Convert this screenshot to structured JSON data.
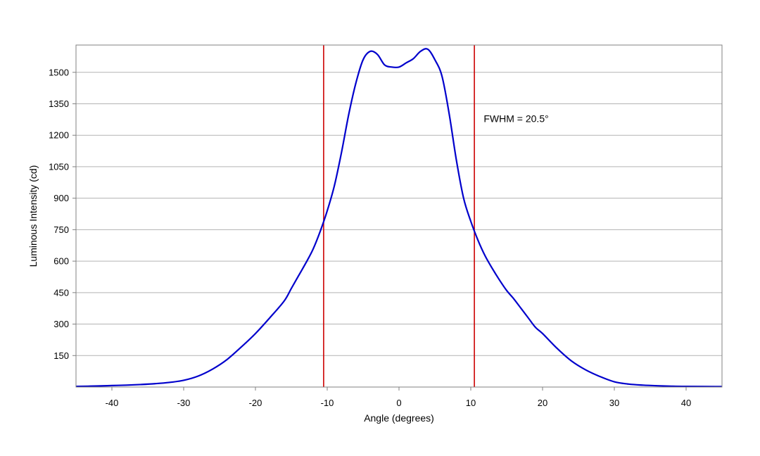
{
  "chart_data": {
    "type": "line",
    "title": "",
    "xlabel": "Angle (degrees)",
    "ylabel": "Luminous Intensity (cd)",
    "xlim": [
      -45,
      45
    ],
    "ylim": [
      0,
      1630
    ],
    "x_ticks": [
      -40,
      -30,
      -20,
      -10,
      0,
      10,
      20,
      30,
      40
    ],
    "y_ticks": [
      150,
      300,
      450,
      600,
      750,
      900,
      1050,
      1200,
      1350,
      1500
    ],
    "grid": "horizontal",
    "legend": "none",
    "series": [
      {
        "color": "#0000cc",
        "points": [
          [
            -45,
            3
          ],
          [
            -42,
            5
          ],
          [
            -40,
            7
          ],
          [
            -38,
            9
          ],
          [
            -36,
            12
          ],
          [
            -34,
            16
          ],
          [
            -32,
            22
          ],
          [
            -30,
            32
          ],
          [
            -28,
            52
          ],
          [
            -26,
            85
          ],
          [
            -24,
            130
          ],
          [
            -22,
            190
          ],
          [
            -20,
            255
          ],
          [
            -18,
            330
          ],
          [
            -16,
            410
          ],
          [
            -15,
            470
          ],
          [
            -14,
            530
          ],
          [
            -13,
            590
          ],
          [
            -12,
            655
          ],
          [
            -11,
            740
          ],
          [
            -10,
            840
          ],
          [
            -9,
            960
          ],
          [
            -8,
            1120
          ],
          [
            -7,
            1300
          ],
          [
            -6,
            1450
          ],
          [
            -5,
            1560
          ],
          [
            -4,
            1600
          ],
          [
            -3,
            1585
          ],
          [
            -2,
            1535
          ],
          [
            -1,
            1525
          ],
          [
            0,
            1525
          ],
          [
            1,
            1545
          ],
          [
            2,
            1565
          ],
          [
            3,
            1600
          ],
          [
            4,
            1610
          ],
          [
            5,
            1560
          ],
          [
            6,
            1480
          ],
          [
            7,
            1300
          ],
          [
            8,
            1080
          ],
          [
            9,
            900
          ],
          [
            10,
            790
          ],
          [
            11,
            700
          ],
          [
            12,
            625
          ],
          [
            13,
            565
          ],
          [
            14,
            510
          ],
          [
            15,
            460
          ],
          [
            16,
            420
          ],
          [
            17,
            375
          ],
          [
            18,
            330
          ],
          [
            19,
            285
          ],
          [
            20,
            255
          ],
          [
            22,
            185
          ],
          [
            24,
            125
          ],
          [
            26,
            82
          ],
          [
            28,
            50
          ],
          [
            30,
            25
          ],
          [
            32,
            14
          ],
          [
            34,
            9
          ],
          [
            36,
            6
          ],
          [
            38,
            4
          ],
          [
            40,
            3
          ],
          [
            45,
            2
          ]
        ]
      }
    ],
    "vertical_lines": [
      {
        "x": -10.5,
        "color": "#cc0000"
      },
      {
        "x": 10.5,
        "color": "#cc0000"
      }
    ],
    "annotations": [
      {
        "text": "FWHM = 20.5°",
        "x": 11.8,
        "y": 1262
      }
    ]
  }
}
